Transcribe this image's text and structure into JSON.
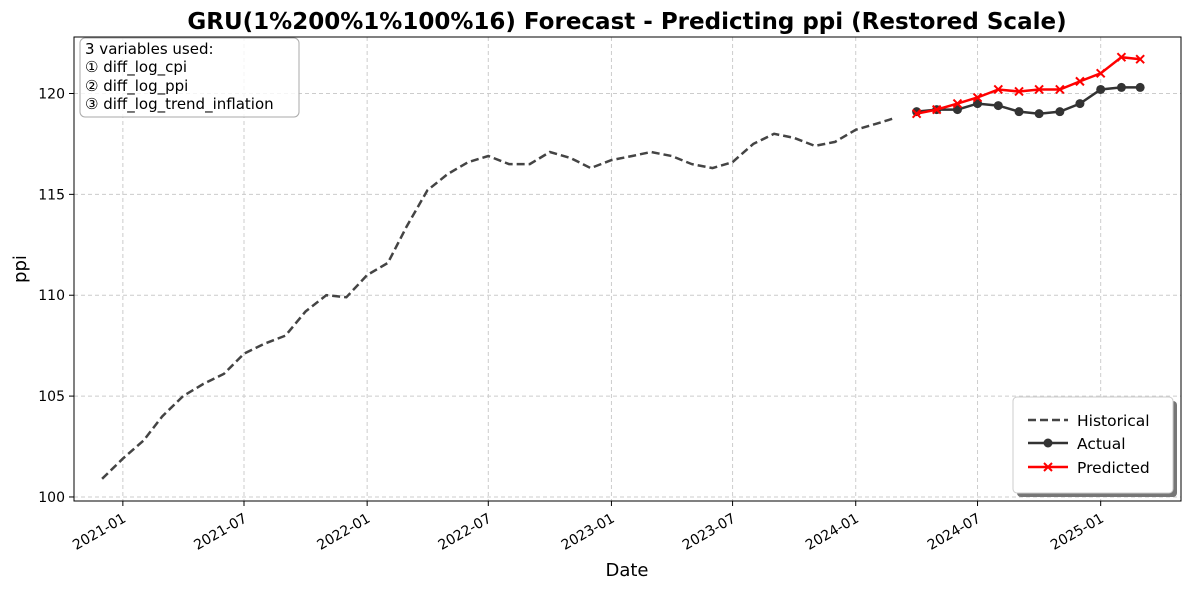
{
  "chart_data": {
    "type": "line",
    "title": "GRU(1%200%1%100%16) Forecast - Predicting ppi (Restored Scale)",
    "xlabel": "Date",
    "ylabel": "ppi",
    "ylim": [
      99.8,
      122.8
    ],
    "xlim": [
      "2020-10-20",
      "2025-05-01"
    ],
    "grid": true,
    "legend_position": "lower-right",
    "x_ticks": [
      "2021-01",
      "2021-07",
      "2022-01",
      "2022-07",
      "2023-01",
      "2023-07",
      "2024-01",
      "2024-07",
      "2025-01"
    ],
    "y_ticks": [
      100,
      105,
      110,
      115,
      120
    ],
    "annotation": {
      "lines": [
        "3 variables used:",
        "① diff_log_cpi",
        "② diff_log_ppi",
        "③ diff_log_trend_inflation"
      ],
      "position": "top-left"
    },
    "series": [
      {
        "name": "Historical",
        "style": "dashed",
        "color": "#444444",
        "x": [
          "2020-12-01",
          "2021-01-01",
          "2021-02-01",
          "2021-03-01",
          "2021-04-01",
          "2021-05-01",
          "2021-06-01",
          "2021-07-01",
          "2021-08-01",
          "2021-09-01",
          "2021-10-01",
          "2021-11-01",
          "2021-12-01",
          "2022-01-01",
          "2022-02-01",
          "2022-03-01",
          "2022-04-01",
          "2022-05-01",
          "2022-06-01",
          "2022-07-01",
          "2022-08-01",
          "2022-09-01",
          "2022-10-01",
          "2022-11-01",
          "2022-12-01",
          "2023-01-01",
          "2023-02-01",
          "2023-03-01",
          "2023-04-01",
          "2023-05-01",
          "2023-06-01",
          "2023-07-01",
          "2023-08-01",
          "2023-09-01",
          "2023-10-01",
          "2023-11-01",
          "2023-12-01",
          "2024-01-01",
          "2024-02-01",
          "2024-03-01"
        ],
        "values": [
          100.9,
          101.9,
          102.8,
          104.0,
          105.0,
          105.6,
          106.1,
          107.1,
          107.6,
          108.0,
          109.2,
          110.0,
          109.9,
          111.0,
          111.6,
          113.4,
          115.2,
          116.0,
          116.6,
          116.9,
          116.5,
          116.5,
          117.1,
          116.8,
          116.3,
          116.7,
          116.9,
          117.1,
          116.9,
          116.5,
          116.3,
          116.6,
          117.5,
          118.0,
          117.8,
          117.4,
          117.6,
          118.2,
          118.5,
          118.8
        ]
      },
      {
        "name": "Actual",
        "style": "solid",
        "marker": "circle",
        "color": "#333333",
        "x": [
          "2024-04-01",
          "2024-05-01",
          "2024-06-01",
          "2024-07-01",
          "2024-08-01",
          "2024-09-01",
          "2024-10-01",
          "2024-11-01",
          "2024-12-01",
          "2025-01-01",
          "2025-02-01",
          "2025-03-01"
        ],
        "values": [
          119.1,
          119.2,
          119.2,
          119.5,
          119.4,
          119.1,
          119.0,
          119.1,
          119.5,
          120.2,
          120.3,
          120.3
        ]
      },
      {
        "name": "Predicted",
        "style": "solid",
        "marker": "x",
        "color": "#ff0000",
        "x": [
          "2024-04-01",
          "2024-05-01",
          "2024-06-01",
          "2024-07-01",
          "2024-08-01",
          "2024-09-01",
          "2024-10-01",
          "2024-11-01",
          "2024-12-01",
          "2025-01-01",
          "2025-02-01",
          "2025-03-01"
        ],
        "values": [
          119.0,
          119.2,
          119.5,
          119.8,
          120.2,
          120.1,
          120.2,
          120.2,
          120.6,
          121.0,
          121.8,
          121.7
        ]
      }
    ]
  }
}
